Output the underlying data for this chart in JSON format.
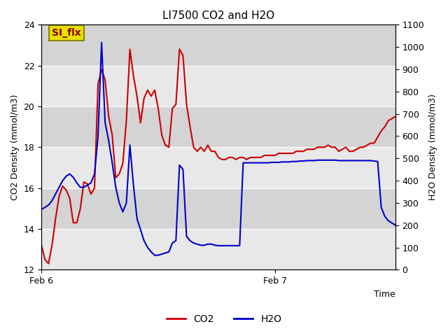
{
  "title": "LI7500 CO2 and H2O",
  "xlabel": "Time",
  "ylabel_left": "CO2 Density (mmol/m3)",
  "ylabel_right": "H2O Density (mmol/m3)",
  "ylim_left": [
    12,
    24
  ],
  "ylim_right": [
    0,
    1100
  ],
  "yticks_left": [
    12,
    14,
    16,
    18,
    20,
    22,
    24
  ],
  "yticks_right": [
    0,
    100,
    200,
    300,
    400,
    500,
    600,
    700,
    800,
    900,
    1000,
    1100
  ],
  "background_color": "#e8e8e8",
  "band_color_light": "#e8e8e8",
  "band_color_dark": "#d4d4d4",
  "grid_line_color": "#ffffff",
  "annotation_text": "SI_flx",
  "annotation_bg": "#e8e000",
  "annotation_border": "#888800",
  "co2_color": "#cc0000",
  "h2o_color": "#0000cc",
  "co2_x": [
    0.0,
    0.01,
    0.02,
    0.03,
    0.04,
    0.05,
    0.06,
    0.07,
    0.08,
    0.09,
    0.1,
    0.11,
    0.12,
    0.13,
    0.14,
    0.15,
    0.16,
    0.17,
    0.18,
    0.19,
    0.2,
    0.21,
    0.22,
    0.23,
    0.24,
    0.25,
    0.26,
    0.27,
    0.28,
    0.29,
    0.3,
    0.31,
    0.32,
    0.33,
    0.34,
    0.35,
    0.36,
    0.37,
    0.38,
    0.39,
    0.4,
    0.41,
    0.42,
    0.43,
    0.44,
    0.45,
    0.46,
    0.47,
    0.48,
    0.49,
    0.5,
    0.51,
    0.52,
    0.53,
    0.54,
    0.55,
    0.56,
    0.57,
    0.58,
    0.59,
    0.6,
    0.61,
    0.62,
    0.63,
    0.64,
    0.65,
    0.66,
    0.67,
    0.68,
    0.69,
    0.7,
    0.71,
    0.72,
    0.73,
    0.74,
    0.75,
    0.76,
    0.77,
    0.78,
    0.79,
    0.8,
    0.81,
    0.82,
    0.83,
    0.84,
    0.85,
    0.86,
    0.87,
    0.88,
    0.89,
    0.9,
    0.91,
    0.92,
    0.93,
    0.94,
    0.95,
    0.96,
    0.97,
    0.98,
    0.99,
    1.0
  ],
  "co2_y": [
    13.2,
    12.5,
    12.3,
    13.2,
    14.5,
    15.6,
    16.1,
    15.9,
    15.5,
    14.3,
    14.3,
    15.0,
    16.3,
    16.2,
    15.7,
    16.0,
    21.1,
    21.8,
    21.3,
    19.5,
    18.6,
    16.5,
    16.7,
    17.2,
    19.3,
    22.8,
    21.5,
    20.5,
    19.2,
    20.4,
    20.8,
    20.5,
    20.8,
    19.9,
    18.6,
    18.1,
    18.0,
    19.9,
    20.1,
    22.8,
    22.5,
    20.1,
    19.0,
    18.0,
    17.8,
    18.0,
    17.8,
    18.1,
    17.8,
    17.8,
    17.5,
    17.4,
    17.4,
    17.5,
    17.5,
    17.4,
    17.5,
    17.5,
    17.4,
    17.5,
    17.5,
    17.5,
    17.5,
    17.6,
    17.6,
    17.6,
    17.6,
    17.7,
    17.7,
    17.7,
    17.7,
    17.7,
    17.8,
    17.8,
    17.8,
    17.9,
    17.9,
    17.9,
    18.0,
    18.0,
    18.0,
    18.1,
    18.0,
    18.0,
    17.8,
    17.9,
    18.0,
    17.8,
    17.8,
    17.9,
    18.0,
    18.0,
    18.1,
    18.2,
    18.2,
    18.5,
    18.8,
    19.0,
    19.3,
    19.4,
    19.5
  ],
  "h2o_x": [
    0.0,
    0.01,
    0.02,
    0.03,
    0.04,
    0.05,
    0.06,
    0.07,
    0.08,
    0.09,
    0.1,
    0.11,
    0.12,
    0.13,
    0.14,
    0.15,
    0.16,
    0.17,
    0.18,
    0.19,
    0.2,
    0.21,
    0.22,
    0.23,
    0.24,
    0.25,
    0.26,
    0.27,
    0.28,
    0.29,
    0.3,
    0.31,
    0.32,
    0.33,
    0.34,
    0.35,
    0.36,
    0.37,
    0.38,
    0.39,
    0.4,
    0.41,
    0.42,
    0.43,
    0.44,
    0.45,
    0.46,
    0.47,
    0.48,
    0.49,
    0.5,
    0.51,
    0.52,
    0.53,
    0.54,
    0.55,
    0.56,
    0.57,
    0.58,
    0.59,
    0.6,
    0.61,
    0.62,
    0.63,
    0.64,
    0.65,
    0.66,
    0.67,
    0.68,
    0.69,
    0.7,
    0.71,
    0.72,
    0.73,
    0.74,
    0.75,
    0.76,
    0.77,
    0.78,
    0.79,
    0.8,
    0.81,
    0.82,
    0.83,
    0.84,
    0.85,
    0.86,
    0.87,
    0.88,
    0.89,
    0.9,
    0.91,
    0.92,
    0.93,
    0.94,
    0.95,
    0.96,
    0.97,
    0.98,
    0.99,
    1.0
  ],
  "h2o_y": [
    270,
    280,
    290,
    310,
    340,
    370,
    400,
    420,
    430,
    415,
    390,
    370,
    370,
    380,
    390,
    430,
    600,
    1020,
    660,
    580,
    480,
    370,
    300,
    260,
    300,
    560,
    380,
    230,
    180,
    130,
    100,
    80,
    65,
    65,
    70,
    75,
    80,
    120,
    130,
    470,
    450,
    150,
    130,
    120,
    115,
    110,
    110,
    115,
    115,
    110,
    108,
    108,
    108,
    108,
    108,
    108,
    108,
    480,
    480,
    480,
    480,
    480,
    480,
    480,
    480,
    482,
    482,
    482,
    484,
    484,
    484,
    486,
    486,
    488,
    488,
    490,
    490,
    490,
    492,
    492,
    492,
    492,
    492,
    492,
    490,
    490,
    490,
    490,
    490,
    490,
    490,
    490,
    490,
    490,
    488,
    486,
    280,
    240,
    220,
    210,
    200
  ]
}
